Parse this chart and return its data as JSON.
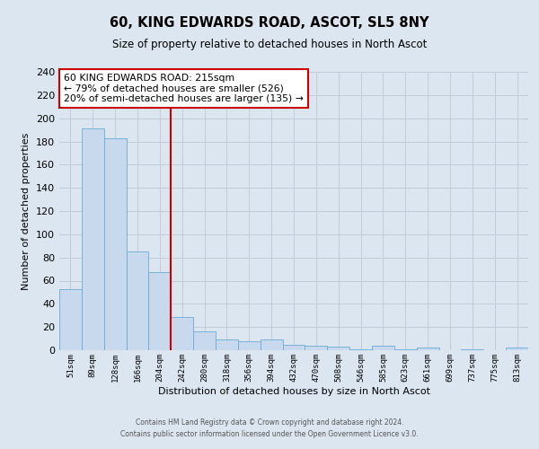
{
  "title": "60, KING EDWARDS ROAD, ASCOT, SL5 8NY",
  "subtitle": "Size of property relative to detached houses in North Ascot",
  "xlabel": "Distribution of detached houses by size in North Ascot",
  "ylabel": "Number of detached properties",
  "footer_line1": "Contains HM Land Registry data © Crown copyright and database right 2024.",
  "footer_line2": "Contains public sector information licensed under the Open Government Licence v3.0.",
  "bar_labels": [
    "51sqm",
    "89sqm",
    "128sqm",
    "166sqm",
    "204sqm",
    "242sqm",
    "280sqm",
    "318sqm",
    "356sqm",
    "394sqm",
    "432sqm",
    "470sqm",
    "508sqm",
    "546sqm",
    "585sqm",
    "623sqm",
    "661sqm",
    "699sqm",
    "737sqm",
    "775sqm",
    "813sqm"
  ],
  "bar_values": [
    53,
    191,
    183,
    85,
    67,
    29,
    16,
    9,
    8,
    9,
    5,
    4,
    3,
    1,
    4,
    1,
    2,
    0,
    1,
    0,
    2
  ],
  "bar_color": "#c8d9ee",
  "bar_edge_color": "#6aaad4",
  "ylim": [
    0,
    240
  ],
  "yticks": [
    0,
    20,
    40,
    60,
    80,
    100,
    120,
    140,
    160,
    180,
    200,
    220,
    240
  ],
  "red_line_x": 4.5,
  "annotation_line1": "60 KING EDWARDS ROAD: 215sqm",
  "annotation_line2": "← 79% of detached houses are smaller (526)",
  "annotation_line3": "20% of semi-detached houses are larger (135) →",
  "annotation_box_color": "#ffffff",
  "annotation_box_edge": "#cc0000",
  "red_line_color": "#cc0000",
  "grid_color": "#c0ccd8",
  "background_color": "#dce6f0"
}
